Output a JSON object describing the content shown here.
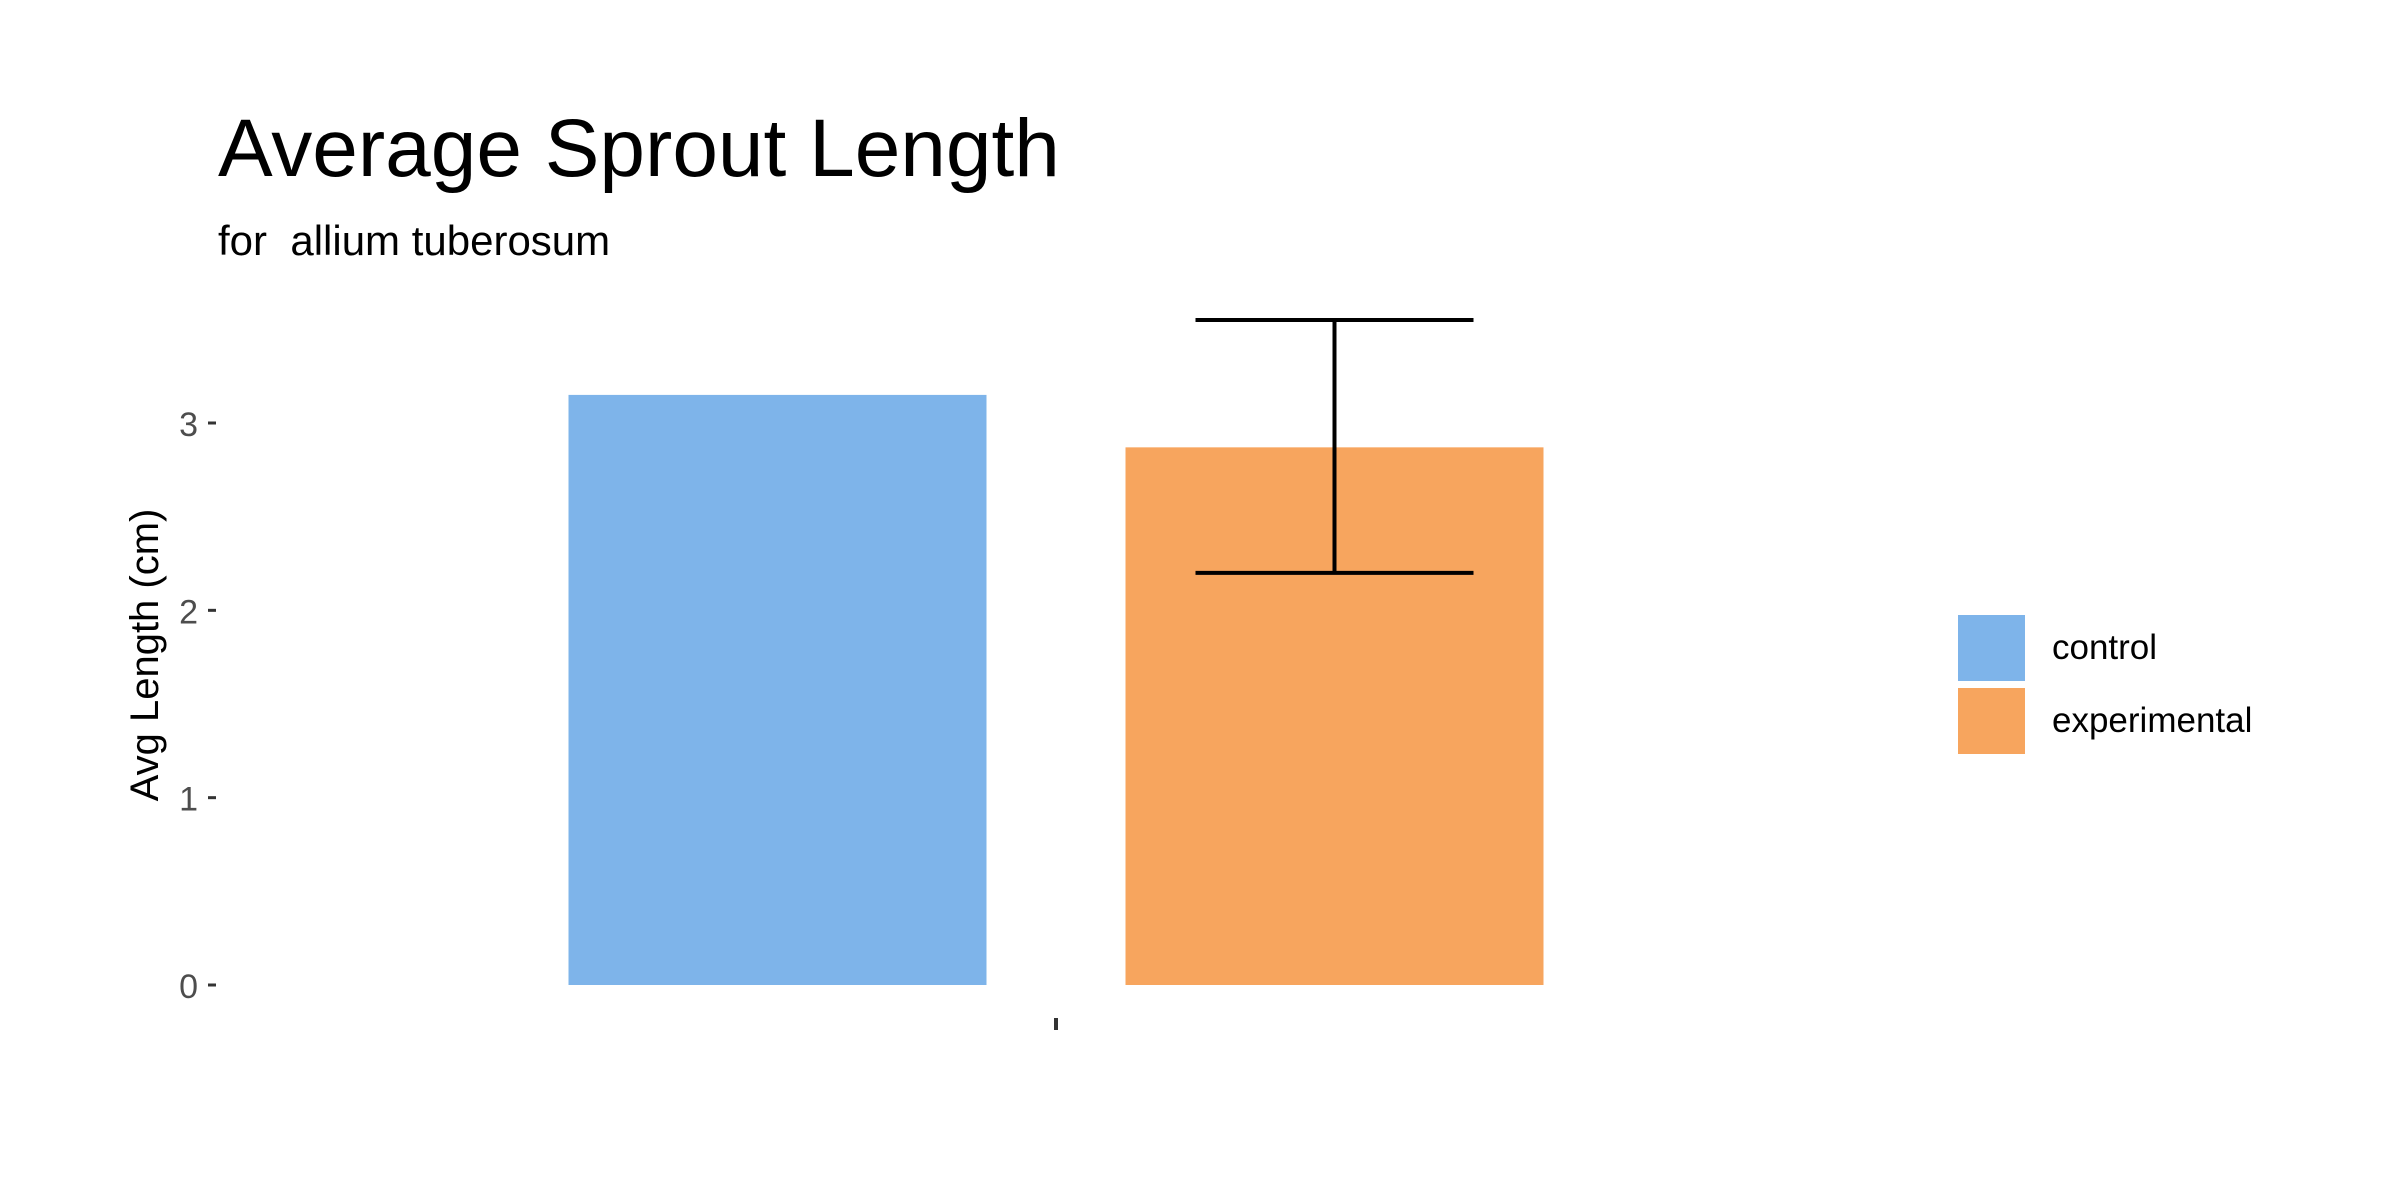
{
  "chart_data": {
    "type": "bar",
    "title": "Average Sprout Length",
    "subtitle": "for  allium tuberosum",
    "xlabel": "",
    "ylabel": "Avg Length (cm)",
    "categories": [
      ""
    ],
    "ylim": [
      0,
      3.6
    ],
    "yticks": [
      0,
      1,
      2,
      3
    ],
    "series": [
      {
        "name": "control",
        "values": [
          3.15
        ],
        "color": "#7EB4EA"
      },
      {
        "name": "experimental",
        "values": [
          2.87
        ],
        "color": "#F7A55E",
        "error": {
          "low": 2.2,
          "high": 3.55
        }
      }
    ],
    "grid": false,
    "legend_position": "right"
  }
}
